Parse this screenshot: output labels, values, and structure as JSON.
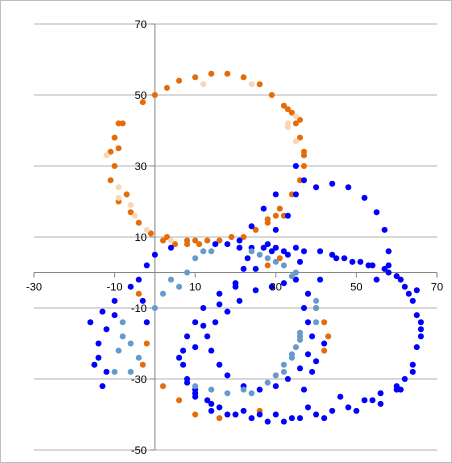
{
  "chart_data": {
    "type": "scatter",
    "title": "",
    "xlabel": "",
    "ylabel": "",
    "xlim": [
      -30,
      70
    ],
    "ylim": [
      -50,
      70
    ],
    "x_ticks": [
      -30,
      -10,
      10,
      30,
      50,
      70
    ],
    "y_ticks": [
      70,
      50,
      30,
      10,
      -10,
      -30,
      -50
    ],
    "x_tick_labels": [
      "-30",
      "-10",
      "10",
      "30",
      "50",
      "70"
    ],
    "y_tick_labels": [
      "70",
      "50",
      "30",
      "10",
      "-10",
      "-30",
      "-50"
    ],
    "grid": "horizontal",
    "legend": "none",
    "series": [
      {
        "color": "#e46c0a",
        "points": [
          [
            -9,
            42
          ],
          [
            -10,
            38
          ],
          [
            -9,
            35
          ],
          [
            -10,
            30
          ],
          [
            -11,
            26
          ],
          [
            -9,
            20
          ],
          [
            -6,
            17
          ],
          [
            -4,
            14
          ],
          [
            -1,
            11
          ],
          [
            2,
            9
          ],
          [
            5,
            8
          ],
          [
            8,
            8
          ],
          [
            10,
            9
          ],
          [
            13,
            9
          ],
          [
            -3,
            48
          ],
          [
            0,
            50
          ],
          [
            3,
            52
          ],
          [
            6,
            54
          ],
          [
            10,
            55
          ],
          [
            14,
            56
          ],
          [
            18,
            56
          ],
          [
            22,
            55
          ],
          [
            26,
            53
          ],
          [
            29,
            50
          ],
          [
            32,
            47
          ],
          [
            35,
            42
          ],
          [
            36,
            38
          ],
          [
            37,
            34
          ],
          [
            37,
            30
          ],
          [
            36,
            26
          ],
          [
            34,
            22
          ],
          [
            31,
            18
          ],
          [
            28,
            14
          ],
          [
            25,
            12
          ],
          [
            22,
            10
          ],
          [
            19,
            10
          ],
          [
            16,
            9
          ],
          [
            -8,
            42
          ],
          [
            -11,
            34
          ],
          [
            -7,
            22
          ],
          [
            3,
            10
          ],
          [
            8,
            9
          ],
          [
            11,
            8
          ],
          [
            33,
            46
          ],
          [
            37,
            33
          ],
          [
            34,
            45
          ],
          [
            36,
            43
          ],
          [
            32,
            16
          ],
          [
            28,
            15
          ],
          [
            30,
            16
          ],
          [
            28,
            2
          ],
          [
            31,
            4
          ],
          [
            35,
            -2
          ],
          [
            38,
            -6
          ],
          [
            40,
            -10
          ],
          [
            42,
            -14
          ],
          [
            43,
            -18
          ],
          [
            42,
            -22
          ],
          [
            -4,
            -6
          ],
          [
            -2,
            -20
          ],
          [
            -3,
            -26
          ],
          [
            2,
            -32
          ],
          [
            6,
            -36
          ],
          [
            10,
            -40
          ],
          [
            16,
            -41
          ],
          [
            20,
            -40
          ],
          [
            26,
            -39
          ]
        ]
      },
      {
        "color": "#fbd5b5",
        "points": [
          [
            -12,
            33
          ],
          [
            -9,
            24
          ],
          [
            -6,
            19
          ],
          [
            -2,
            12
          ],
          [
            12,
            53
          ],
          [
            24,
            53
          ],
          [
            33,
            42
          ],
          [
            35,
            37
          ],
          [
            33,
            41
          ],
          [
            35,
            44
          ],
          [
            4,
            9
          ],
          [
            -9,
            21
          ],
          [
            -5,
            16
          ]
        ]
      },
      {
        "color": "#0000ff",
        "points": [
          [
            30,
            12
          ],
          [
            33,
            16
          ],
          [
            35,
            22
          ],
          [
            37,
            26
          ],
          [
            35,
            30
          ],
          [
            30,
            22
          ],
          [
            27,
            18
          ],
          [
            24,
            13
          ],
          [
            21,
            9
          ],
          [
            23,
            4
          ],
          [
            25,
            1
          ],
          [
            20,
            -3
          ],
          [
            16,
            -6
          ],
          [
            12,
            -10
          ],
          [
            10,
            -14
          ],
          [
            8,
            -18
          ],
          [
            7,
            -22
          ],
          [
            7,
            -26
          ],
          [
            8,
            -30
          ],
          [
            10,
            -33
          ],
          [
            13,
            -36
          ],
          [
            16,
            -38
          ],
          [
            20,
            -40
          ],
          [
            24,
            -41
          ],
          [
            28,
            -42
          ],
          [
            32,
            -42
          ],
          [
            36,
            -41
          ],
          [
            40,
            -40
          ],
          [
            44,
            -39
          ],
          [
            48,
            -38
          ],
          [
            52,
            -36
          ],
          [
            56,
            -34
          ],
          [
            60,
            -32
          ],
          [
            62,
            -30
          ],
          [
            64,
            -26
          ],
          [
            65,
            -21
          ],
          [
            66,
            -16
          ],
          [
            65,
            -12
          ],
          [
            64,
            -8
          ],
          [
            62,
            -4
          ],
          [
            60,
            -1
          ],
          [
            57,
            1
          ],
          [
            54,
            2
          ],
          [
            51,
            3
          ],
          [
            47,
            4
          ],
          [
            44,
            5
          ],
          [
            41,
            6
          ],
          [
            37,
            6
          ],
          [
            35,
            7
          ],
          [
            32,
            6
          ],
          [
            29,
            6
          ],
          [
            27,
            7
          ],
          [
            24,
            7
          ],
          [
            21,
            7
          ],
          [
            18,
            8
          ],
          [
            15,
            8
          ],
          [
            40,
            24
          ],
          [
            44,
            25
          ],
          [
            48,
            24
          ],
          [
            52,
            21
          ],
          [
            55,
            17
          ],
          [
            57,
            12
          ],
          [
            58,
            6
          ],
          [
            58,
            2
          ],
          [
            55,
            -2
          ],
          [
            41,
            -2
          ],
          [
            38,
            -6
          ],
          [
            37,
            -10
          ],
          [
            38,
            -14
          ],
          [
            39,
            -18
          ],
          [
            38,
            -23
          ],
          [
            36,
            -27
          ],
          [
            33,
            -30
          ],
          [
            30,
            -32
          ],
          [
            26,
            -33
          ],
          [
            22,
            -32
          ],
          [
            18,
            -29
          ],
          [
            16,
            -26
          ],
          [
            14,
            -22
          ],
          [
            13,
            -18
          ],
          [
            15,
            -14
          ],
          [
            18,
            -11
          ],
          [
            21,
            -8
          ],
          [
            25,
            -5
          ],
          [
            29,
            -4
          ],
          [
            32,
            -3
          ],
          [
            35,
            -2
          ],
          [
            -16,
            -14
          ],
          [
            -14,
            -20
          ],
          [
            -14,
            -24
          ],
          [
            -12,
            -28
          ],
          [
            -10,
            -12
          ],
          [
            -10,
            -8
          ],
          [
            -6,
            -4
          ],
          [
            -3,
            -8
          ],
          [
            -2,
            -14
          ],
          [
            -4,
            -2
          ],
          [
            -2,
            2
          ],
          [
            0,
            5
          ],
          [
            4,
            7
          ],
          [
            66,
            -14
          ],
          [
            65,
            -5
          ],
          [
            66,
            -18
          ],
          [
            64,
            -28
          ],
          [
            61,
            -33
          ],
          [
            56,
            -37
          ],
          [
            50,
            -39
          ],
          [
            42,
            -41
          ],
          [
            34,
            -41
          ],
          [
            26,
            -40
          ],
          [
            18,
            -40
          ],
          [
            14,
            -39
          ],
          [
            10,
            -35
          ],
          [
            8,
            -31
          ],
          [
            6,
            -24
          ],
          [
            10,
            -21
          ],
          [
            12,
            -15
          ],
          [
            16,
            -9
          ],
          [
            20,
            -4
          ],
          [
            22,
            1
          ],
          [
            28,
            8
          ],
          [
            30,
            7
          ],
          [
            33,
            5
          ],
          [
            36,
            3
          ],
          [
            -13,
            -11
          ],
          [
            -12,
            -16
          ],
          [
            -15,
            -26
          ],
          [
            -13,
            -32
          ],
          [
            45,
            4
          ],
          [
            49,
            3
          ],
          [
            53,
            2
          ],
          [
            58,
            0
          ],
          [
            61,
            -2
          ],
          [
            63,
            -6
          ],
          [
            46,
            -35
          ],
          [
            54,
            -36
          ],
          [
            60,
            -33
          ],
          [
            38,
            -38
          ],
          [
            30,
            -40
          ],
          [
            22,
            -39
          ],
          [
            14,
            -37
          ],
          [
            10,
            -34
          ],
          [
            42,
            -20
          ],
          [
            40,
            -25
          ],
          [
            39,
            -28
          ],
          [
            37,
            -33
          ]
        ]
      },
      {
        "color": "#6699cc",
        "points": [
          [
            10,
            -32
          ],
          [
            14,
            -33
          ],
          [
            18,
            -34
          ],
          [
            22,
            -33
          ],
          [
            28,
            -31
          ],
          [
            32,
            -28
          ],
          [
            34,
            -24
          ],
          [
            35,
            -21
          ],
          [
            36,
            -17
          ],
          [
            24,
            -34
          ],
          [
            30,
            -29
          ],
          [
            32,
            -26
          ],
          [
            34,
            -23
          ],
          [
            36,
            -19
          ],
          [
            24,
            6
          ],
          [
            26,
            5
          ],
          [
            28,
            4
          ],
          [
            30,
            3
          ],
          [
            32,
            2
          ],
          [
            35,
            0
          ],
          [
            -8,
            -14
          ],
          [
            -6,
            -20
          ],
          [
            -4,
            -24
          ],
          [
            -6,
            -28
          ],
          [
            0,
            -10
          ],
          [
            2,
            -6
          ],
          [
            6,
            -4
          ],
          [
            8,
            0
          ],
          [
            10,
            4
          ],
          [
            12,
            6
          ],
          [
            40,
            -8
          ],
          [
            40,
            -10
          ],
          [
            40,
            -14
          ],
          [
            -10,
            -28
          ],
          [
            -9,
            -22
          ],
          [
            -8,
            -18
          ],
          [
            4,
            -2
          ],
          [
            14,
            6
          ],
          [
            34,
            -1
          ],
          [
            36,
            -18
          ]
        ]
      }
    ]
  }
}
